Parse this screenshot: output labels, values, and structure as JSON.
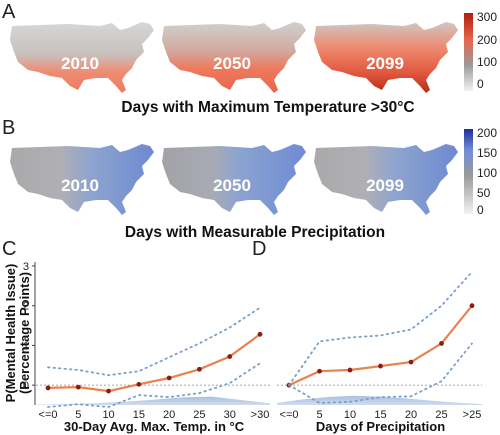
{
  "panels": {
    "A": {
      "letter": "A",
      "title": "Days with Maximum Temperature >30°C",
      "years": [
        "2010",
        "2050",
        "2099"
      ],
      "colorbar_ticks": [
        "300",
        "200",
        "100",
        "0"
      ],
      "colors": {
        "low": "#f2f2f2",
        "mid": "#9a9a9a",
        "high": "#e8644c",
        "max": "#b31d10"
      }
    },
    "B": {
      "letter": "B",
      "title": "Days with Measurable Precipitation",
      "years": [
        "2010",
        "2050",
        "2099"
      ],
      "colorbar_ticks": [
        "200",
        "150",
        "100",
        "50",
        "0"
      ],
      "colors": {
        "low": "#f2f2f2",
        "mid": "#9a9a9a",
        "high": "#6f8ed6",
        "max": "#1f2f9a"
      }
    },
    "C": {
      "letter": "C"
    },
    "D": {
      "letter": "D"
    }
  },
  "chart_data": [
    {
      "type": "line",
      "panel": "C",
      "ylabel": "P(Mental Health Issue)\n(Percentage Points)",
      "xlabel": "30-Day Avg. Max. Temp. in °C",
      "x_ticks": [
        "<=0",
        "5",
        "10",
        "15",
        "20",
        "25",
        "30",
        ">30"
      ],
      "y_ticks": [
        "0",
        "1",
        "2",
        "3"
      ],
      "ylim": [
        -0.5,
        3.1
      ],
      "series": [
        {
          "role": "estimate",
          "color": "#e8834f",
          "marker_color": "#8b1d12",
          "values": [
            -0.07,
            -0.05,
            -0.15,
            0.02,
            0.18,
            0.4,
            0.72,
            1.28
          ]
        },
        {
          "role": "ci_upper",
          "color": "#7a9fc9",
          "values": [
            0.45,
            0.38,
            0.25,
            0.35,
            0.7,
            1.05,
            1.45,
            1.95
          ]
        },
        {
          "role": "ci_lower",
          "color": "#7a9fc9",
          "values": [
            -0.55,
            -0.48,
            -0.55,
            -0.25,
            -0.3,
            -0.2,
            0.05,
            0.55
          ]
        }
      ],
      "reference_line": 0,
      "distribution": [
        0.02,
        0.05,
        0.09,
        0.16,
        0.26,
        0.38,
        0.42,
        0.25,
        0.08
      ]
    },
    {
      "type": "line",
      "panel": "D",
      "xlabel": "Days of Precipitation",
      "x_ticks": [
        "<=0",
        "5",
        "10",
        "15",
        "20",
        "25",
        ">25"
      ],
      "y_ticks": [],
      "ylim": [
        -0.5,
        3.1
      ],
      "series": [
        {
          "role": "estimate",
          "color": "#e8834f",
          "marker_color": "#8b1d12",
          "values": [
            0.0,
            0.35,
            0.38,
            0.48,
            0.58,
            1.05,
            2.0
          ]
        },
        {
          "role": "ci_upper",
          "color": "#7a9fc9",
          "values": [
            0.0,
            1.1,
            1.2,
            1.25,
            1.4,
            2.0,
            2.85
          ]
        },
        {
          "role": "ci_lower",
          "color": "#7a9fc9",
          "values": [
            0.0,
            -0.45,
            -0.42,
            -0.3,
            -0.28,
            0.1,
            1.05
          ]
        }
      ],
      "reference_line": 0,
      "distribution": [
        0.1,
        0.28,
        0.4,
        0.46,
        0.42,
        0.33,
        0.22,
        0.12,
        0.05
      ]
    }
  ]
}
